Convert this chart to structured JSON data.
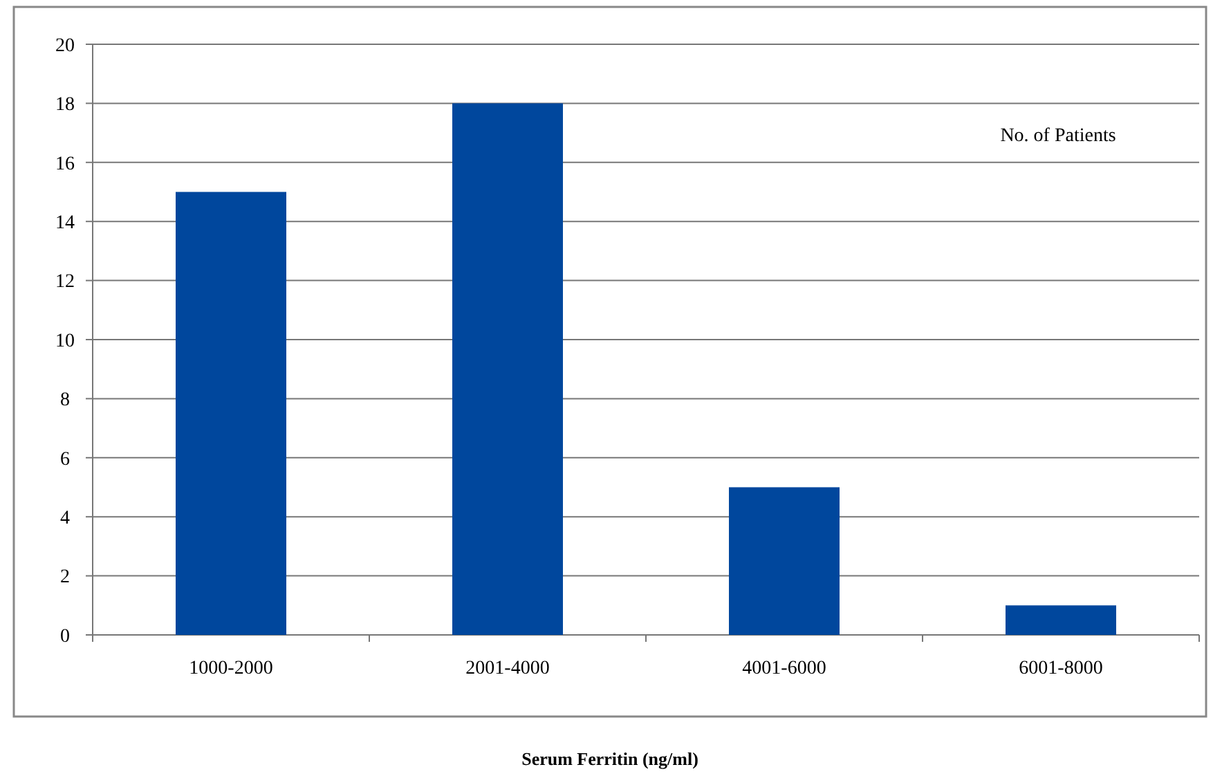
{
  "chart_data": {
    "type": "bar",
    "xlabel": "Serum Ferritin (ng/ml)",
    "categories": [
      "1000-2000",
      "2001-4000",
      "4001-6000",
      "6001-8000"
    ],
    "values": [
      15,
      18,
      5,
      1
    ],
    "color": "#00479d",
    "ylim": [
      0,
      20
    ],
    "yticks": [
      0,
      2,
      4,
      6,
      8,
      10,
      12,
      14,
      16,
      18,
      20
    ],
    "grid": "y",
    "annotations": [
      "No. of Patients"
    ]
  }
}
